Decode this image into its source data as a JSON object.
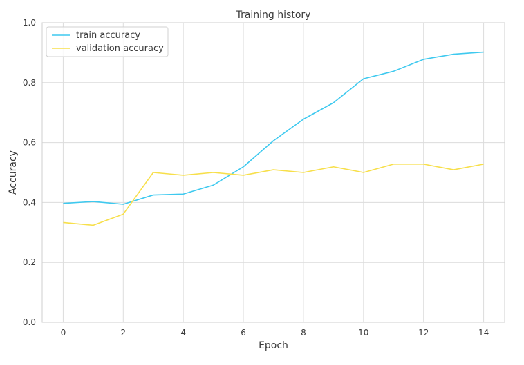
{
  "chart_data": {
    "type": "line",
    "title": "Training history",
    "xlabel": "Epoch",
    "ylabel": "Accuracy",
    "x": [
      0,
      1,
      2,
      3,
      4,
      5,
      6,
      7,
      8,
      9,
      10,
      11,
      12,
      13,
      14
    ],
    "xlim": [
      -0.7,
      14.7
    ],
    "ylim": [
      0.0,
      1.0
    ],
    "xticks": [
      0,
      2,
      4,
      6,
      8,
      10,
      12,
      14
    ],
    "xtick_labels": [
      "0",
      "2",
      "4",
      "6",
      "8",
      "10",
      "12",
      "14"
    ],
    "yticks": [
      0.0,
      0.2,
      0.4,
      0.6,
      0.8,
      1.0
    ],
    "ytick_labels": [
      "0.0",
      "0.2",
      "0.4",
      "0.6",
      "0.8",
      "1.0"
    ],
    "grid": true,
    "legend_position": "top-left",
    "series": [
      {
        "name": "train accuracy",
        "color": "#3ec9ef",
        "values": [
          0.397,
          0.403,
          0.394,
          0.425,
          0.428,
          0.458,
          0.519,
          0.606,
          0.678,
          0.733,
          0.813,
          0.838,
          0.878,
          0.895,
          0.902
        ]
      },
      {
        "name": "validation accuracy",
        "color": "#f7df4a",
        "values": [
          0.333,
          0.324,
          0.361,
          0.5,
          0.491,
          0.5,
          0.491,
          0.509,
          0.5,
          0.519,
          0.5,
          0.528,
          0.528,
          0.509,
          0.528
        ]
      }
    ]
  }
}
